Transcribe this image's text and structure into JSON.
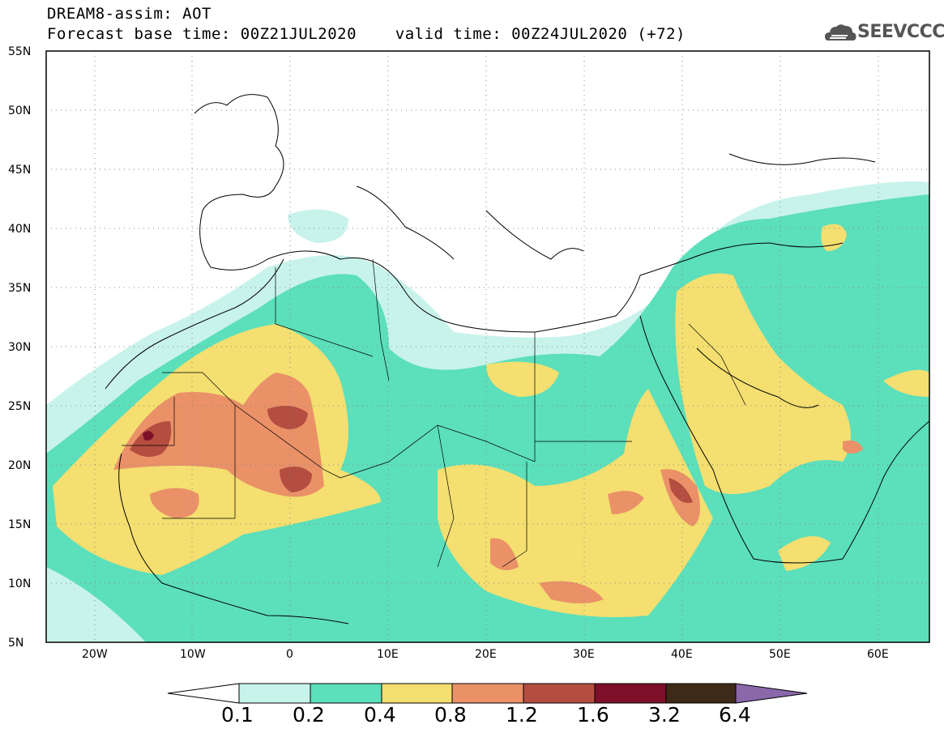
{
  "header": {
    "line1": "DREAM8-assim: AOT",
    "line2": "Forecast base time: 00Z21JUL2020    valid time: 00Z24JUL2020 (+72)"
  },
  "logo": {
    "text": "SEEVCCC",
    "icon": "cloud-icon",
    "color": "#555555"
  },
  "map": {
    "lat_labels": [
      "55N",
      "50N",
      "45N",
      "40N",
      "35N",
      "30N",
      "25N",
      "20N",
      "15N",
      "10N",
      "5N"
    ],
    "lon_labels": [
      "20W",
      "10W",
      "0",
      "10E",
      "20E",
      "30E",
      "40E",
      "50E",
      "60E"
    ]
  },
  "colorbar": {
    "levels": [
      "0.1",
      "0.2",
      "0.4",
      "0.8",
      "1.2",
      "1.6",
      "3.2",
      "6.4"
    ],
    "colors": [
      "#c8f3eb",
      "#5cdfbb",
      "#f4df70",
      "#ea9168",
      "#b44e40",
      "#7d0f28",
      "#3e2a18",
      "#8a68aa"
    ]
  }
}
